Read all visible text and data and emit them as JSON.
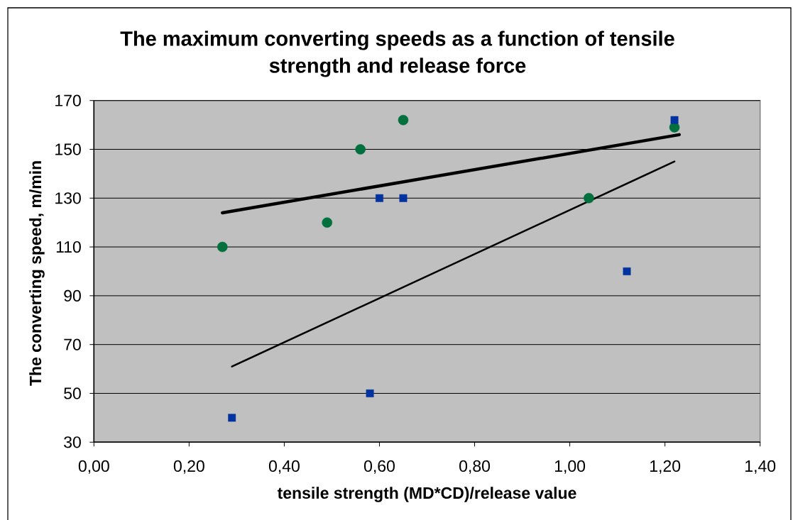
{
  "chart_data": {
    "type": "scatter",
    "title": "The maximum converting speeds as a function of tensile strength and release force",
    "xlabel": "tensile strength (MD*CD)/release value",
    "ylabel": "The converting speed, m/min",
    "series": [
      {
        "color": "#00703c",
        "marker": "circle",
        "x": [
          0.27,
          0.49,
          0.56,
          0.65,
          1.04,
          1.22
        ],
        "values": [
          110,
          120,
          150,
          162,
          130,
          159
        ]
      },
      {
        "color": "#0033a0",
        "marker": "square",
        "x": [
          0.29,
          0.58,
          0.6,
          0.65,
          1.12,
          1.22
        ],
        "values": [
          40,
          50,
          130,
          130,
          100,
          162
        ]
      },
      {
        "type": "line",
        "color": "#000000",
        "line_style": "solid",
        "x": [
          0.27,
          1.23
        ],
        "values": [
          124,
          156
        ]
      },
      {
        "type": "line",
        "color": "#000000",
        "line_style": "solid",
        "x": [
          0.29,
          1.22
        ],
        "values": [
          61,
          145
        ]
      }
    ],
    "xlim": [
      0,
      1.4
    ],
    "xticks": [
      {
        "value": 0,
        "label": "0,00"
      },
      {
        "value": 0.2,
        "label": "0,20"
      },
      {
        "value": 0.4,
        "label": "0,40"
      },
      {
        "value": 0.6,
        "label": "0,60"
      },
      {
        "value": 0.8,
        "label": "0,80"
      },
      {
        "value": 1.0,
        "label": "1,00"
      },
      {
        "value": 1.2,
        "label": "1,20"
      },
      {
        "value": 1.4,
        "label": "1,40"
      }
    ],
    "ylim": [
      30,
      170
    ],
    "yticks": [
      30,
      50,
      70,
      90,
      110,
      130,
      150,
      170
    ],
    "grid": "y"
  }
}
